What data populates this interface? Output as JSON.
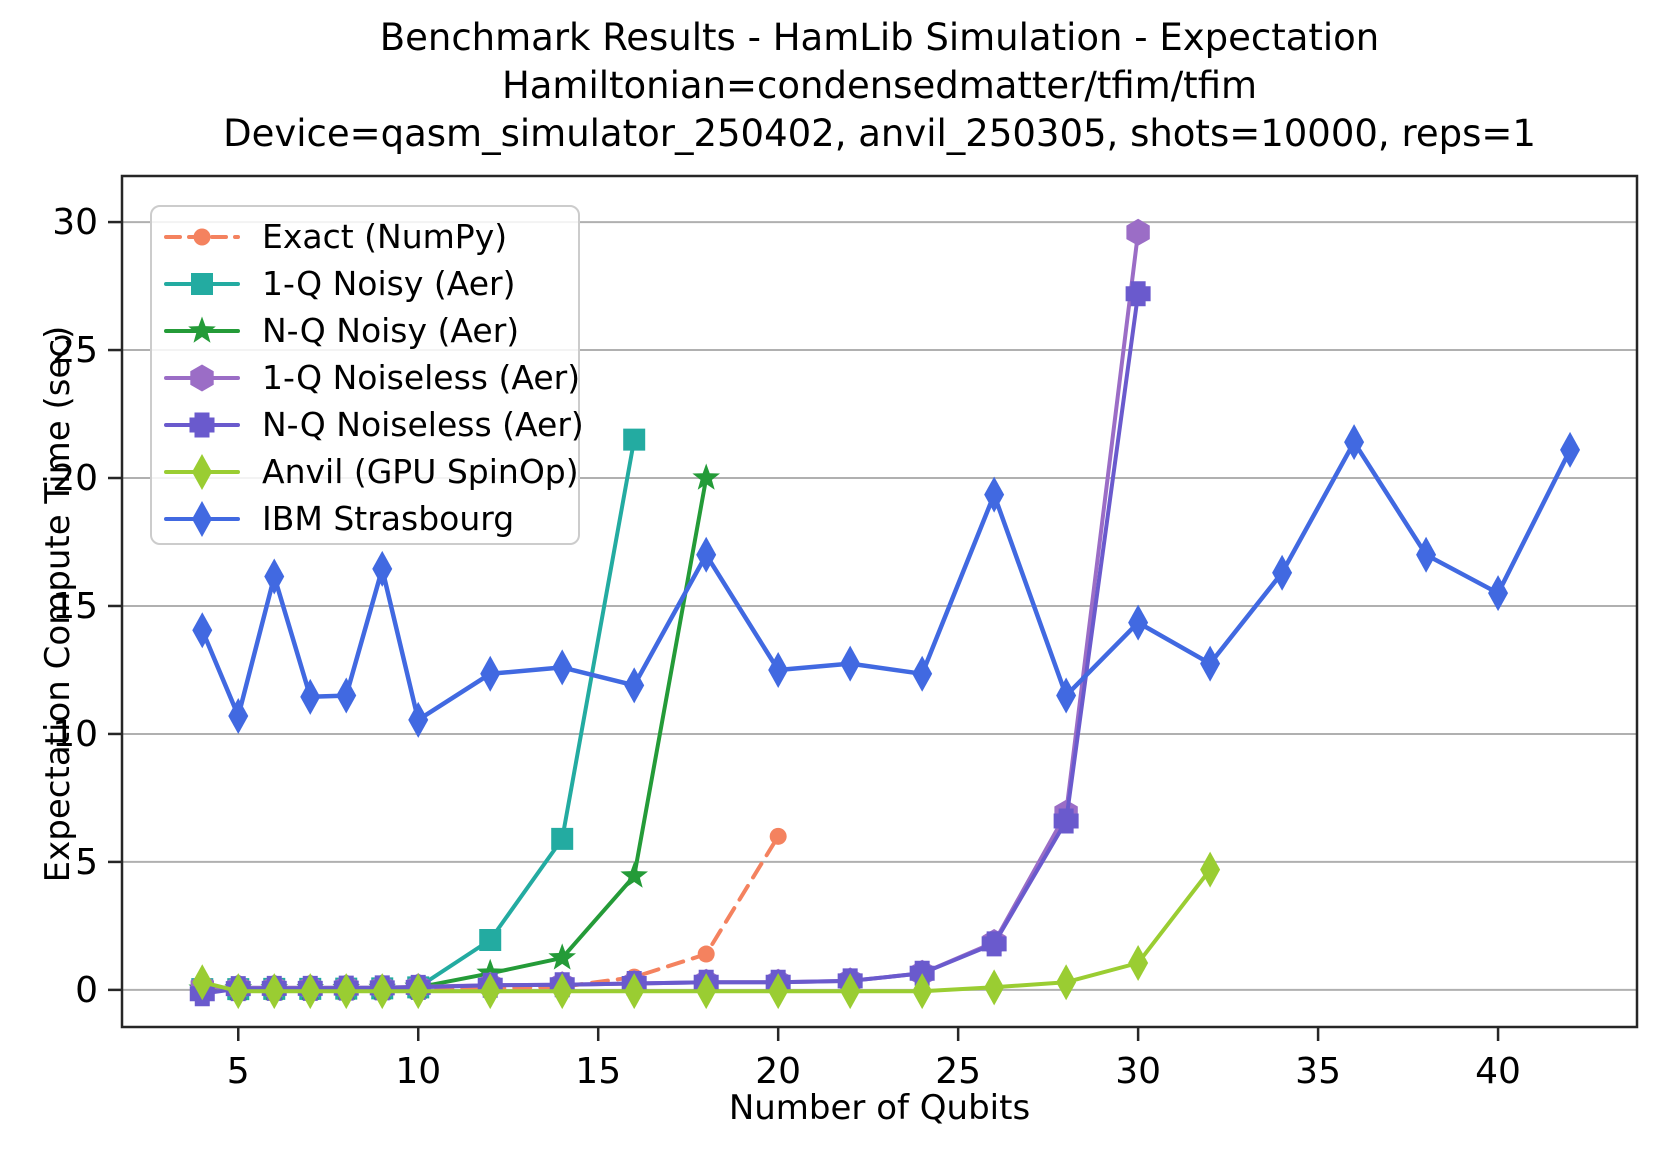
{
  "title": {
    "line1": "Benchmark Results - HamLib Simulation - Expectation",
    "line2": "Hamiltonian=condensedmatter/tfim/tfim",
    "line3": "Device=qasm_simulator_250402, anvil_250305, shots=10000, reps=1"
  },
  "x_axis": {
    "label": "Number of Qubits",
    "ticks": [
      5,
      10,
      15,
      20,
      25,
      30,
      35,
      40
    ],
    "range": [
      1.77,
      43.86
    ]
  },
  "y_axis": {
    "label": "Expectation Compute Time (sec)",
    "ticks": [
      0,
      5,
      10,
      15,
      20,
      25,
      30
    ],
    "range": [
      -1.45,
      31.8
    ]
  },
  "colors": {
    "grid": "#b0b0b0",
    "spine": "#262626",
    "text": "#000000"
  },
  "chart_data": {
    "type": "line",
    "title": "Benchmark Results - HamLib Simulation - Expectation",
    "xlabel": "Number of Qubits",
    "ylabel": "Expectation Compute Time (sec)",
    "xlim": [
      1.77,
      43.86
    ],
    "ylim": [
      -1.45,
      31.8
    ],
    "grid": "horizontal",
    "legend_position": "upper-left",
    "series": [
      {
        "name": "Exact (NumPy)",
        "color": "#F4825F",
        "marker": "circle",
        "line": "dashed",
        "x": [
          4,
          5,
          6,
          7,
          8,
          9,
          10,
          12,
          14,
          16,
          18,
          20
        ],
        "y": [
          0.02,
          0.02,
          0.02,
          0.02,
          0.03,
          0.03,
          0.04,
          0.06,
          0.12,
          0.5,
          1.4,
          6.0
        ]
      },
      {
        "name": "1-Q Noisy (Aer)",
        "color": "#23ABA1",
        "marker": "square",
        "line": "solid",
        "x": [
          4,
          5,
          6,
          7,
          8,
          9,
          10,
          12,
          14,
          16
        ],
        "y": [
          0.03,
          0.03,
          0.04,
          0.04,
          0.05,
          0.06,
          0.1,
          1.95,
          5.9,
          21.5
        ]
      },
      {
        "name": "N-Q Noisy (Aer)",
        "color": "#249B38",
        "marker": "star",
        "line": "solid",
        "x": [
          4,
          5,
          6,
          7,
          8,
          9,
          10,
          12,
          14,
          16,
          18
        ],
        "y": [
          0.03,
          0.04,
          0.04,
          0.05,
          0.05,
          0.06,
          0.1,
          0.65,
          1.25,
          4.45,
          20.0
        ]
      },
      {
        "name": "1-Q Noiseless (Aer)",
        "color": "#9B6DC6",
        "marker": "hexagon",
        "line": "solid",
        "x": [
          4,
          5,
          6,
          7,
          8,
          9,
          10,
          12,
          14,
          16,
          18,
          20,
          22,
          24,
          26,
          28,
          30
        ],
        "y": [
          0.1,
          0.08,
          0.08,
          0.08,
          0.09,
          0.09,
          0.12,
          0.18,
          0.2,
          0.25,
          0.3,
          0.3,
          0.35,
          0.65,
          1.85,
          6.9,
          29.6
        ]
      },
      {
        "name": "N-Q Noiseless (Aer)",
        "color": "#6A5ACD",
        "marker": "plus",
        "line": "solid",
        "x": [
          4,
          5,
          6,
          7,
          8,
          9,
          10,
          12,
          14,
          16,
          18,
          20,
          22,
          24,
          26,
          28,
          30
        ],
        "y": [
          -0.15,
          0.05,
          0.06,
          0.06,
          0.07,
          0.08,
          0.1,
          0.18,
          0.2,
          0.25,
          0.3,
          0.3,
          0.35,
          0.65,
          1.8,
          6.6,
          27.2
        ]
      },
      {
        "name": "Anvil (GPU SpinOp)",
        "color": "#9ACD32",
        "marker": "thin-diamond",
        "line": "solid",
        "x": [
          4,
          5,
          6,
          7,
          8,
          9,
          10,
          12,
          14,
          16,
          18,
          20,
          22,
          24,
          26,
          28,
          30,
          32
        ],
        "y": [
          0.3,
          -0.05,
          -0.05,
          -0.05,
          -0.05,
          -0.05,
          -0.05,
          -0.05,
          -0.05,
          -0.05,
          -0.05,
          -0.05,
          -0.05,
          -0.05,
          0.1,
          0.3,
          1.05,
          4.7
        ]
      },
      {
        "name": "IBM Strasbourg",
        "color": "#4169E1",
        "marker": "thin-diamond",
        "line": "solid",
        "x": [
          4,
          5,
          6,
          7,
          8,
          9,
          10,
          12,
          14,
          16,
          18,
          20,
          22,
          24,
          26,
          28,
          30,
          32,
          34,
          36,
          38,
          40,
          42
        ],
        "y": [
          14.05,
          10.7,
          16.15,
          11.45,
          11.5,
          16.45,
          10.55,
          12.35,
          12.6,
          11.9,
          17.0,
          12.5,
          12.75,
          12.35,
          19.35,
          11.5,
          14.35,
          12.75,
          16.3,
          21.4,
          17.0,
          15.5,
          21.1
        ]
      }
    ]
  }
}
